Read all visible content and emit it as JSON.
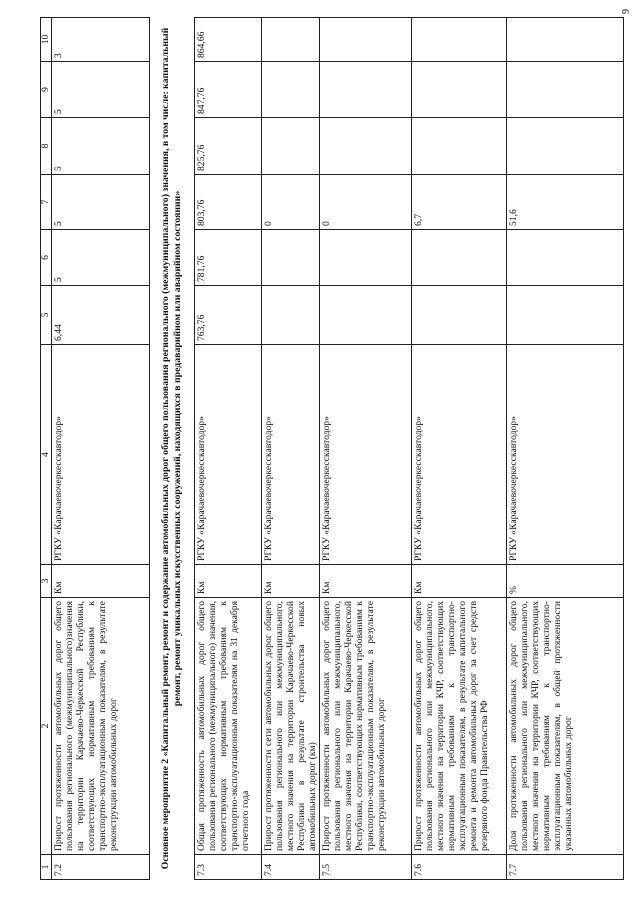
{
  "page_number": "9",
  "header": [
    "1",
    "2",
    "3",
    "4",
    "5",
    "6",
    "7",
    "8",
    "9",
    "10"
  ],
  "section_heading": "Основное мероприятие 2 «Капитальный ремонт, ремонт и содержание автомобильных дорог общего пользования регионального (межмуниципального) значения, в том числе: капитальный ремонт, ремонт уникальных искусственных сооружений, находящихся в предаварийном или аварийном состоянии»",
  "rows": [
    {
      "num": "7.2",
      "desc": "Прирост протяженности автомобильных дорог общего пользования регионального (межмуниципального)значения на территории Карачаево-Черкесской Республики, соответствующих нормативным требованиям к транспортно-эксплуатационным показателям, в результате реконструкции автомобильных дорог",
      "unit": "Км",
      "exec": "РГКУ «Карачаевочеркесскавтодор»",
      "v": [
        "6,44",
        "5",
        "5",
        "5",
        "5",
        "3"
      ]
    },
    {
      "num": "7.3",
      "desc": "Общая протяженность автомобильных дорог общего пользования регионального (межмуниципального) значения, соответствующих нормативным требованиям к транспортно-эксплуатационным показателям на 31 декабря отчетного года",
      "unit": "Км",
      "exec": "РГКУ «Карачаевочеркесскавтодор»",
      "v": [
        "763,76",
        "781,76",
        "803,76",
        "825,76",
        "847,76",
        "864,66"
      ]
    },
    {
      "num": "7.4",
      "desc": "Прирост протяженности сети автомобильных дорог общего пользования регионального или межмуниципального, местного значения на территории Карачаево-Черкесской Республики в результате строительства новых автомобильных дорог (км)",
      "unit": "Км",
      "exec": "РГКУ «Карачаевочеркесскавтодор»",
      "v": [
        "",
        "",
        "0",
        "",
        "",
        ""
      ]
    },
    {
      "num": "7.5",
      "desc": "Прирост протяженности автомобильных дорог общего пользования регионального или межмуниципального, местного значения на территории Карачаево-Черкесской Республики, соответствующих нормативным требованиям к транспортно-эксплуатационным показателям, в результате реконструкции автомобильных дорог",
      "unit": "Км",
      "exec": "РГКУ «Карачаевочеркесскавтодор»",
      "v": [
        "",
        "",
        "0",
        "",
        "",
        ""
      ]
    },
    {
      "num": "7.6",
      "desc": "Прирост протяженности автомобильных дорог общего пользования регионального или межмуниципального, местного значения на территории КЧР, соответствующих нормативным требованиям к транспортно-эксплуатационным показателям, в результате капитального ремонта и ремонта автомобильных дорог за счет средств резервного фонда Правительства РФ",
      "unit": "Км",
      "exec": "РГКУ «Карачаевочеркесскавтодор»",
      "v": [
        "",
        "",
        "6,7",
        "",
        "",
        ""
      ]
    },
    {
      "num": "7.7",
      "desc": "Доля протяженности автомобильных дорог общего пользования регионального или межмуниципального, местного значения на территории КЧР, соответствующих нормативным требованиям к транспортно-эксплуатационным показателям, в общей протяженности указанных автомобильных дорог",
      "unit": "%",
      "exec": "РГКУ «Карачаевочеркесскавтодор»",
      "v": [
        "",
        "",
        "51,6",
        "",
        "",
        ""
      ]
    }
  ]
}
